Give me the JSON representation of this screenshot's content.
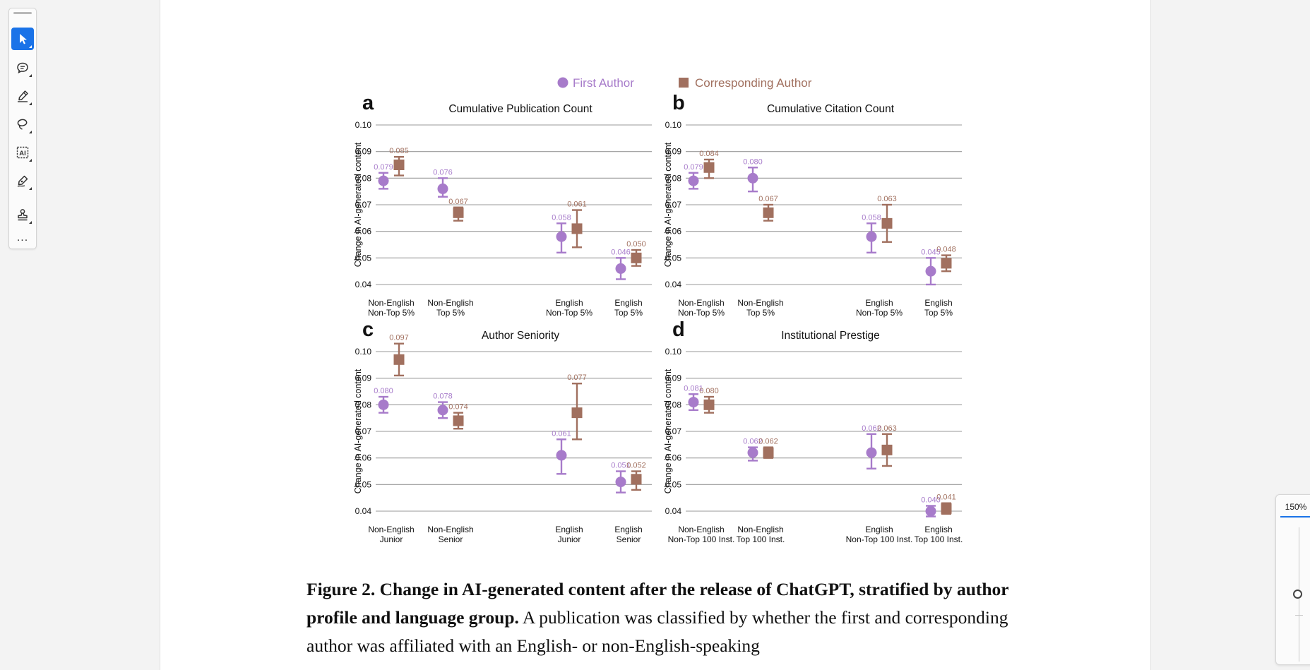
{
  "toolbar": {
    "tools": [
      "select-tool",
      "comment-tool",
      "highlight-tool",
      "lasso-tool",
      "ai-text-select-tool",
      "draw-tool",
      "stamp-tool"
    ],
    "more_label": "..."
  },
  "zoom": {
    "level": "150%",
    "slider_value": 0.5
  },
  "figure": {
    "legend": {
      "first": "First Author",
      "corresponding": "Corresponding Author"
    },
    "colors": {
      "first": "#a77bca",
      "corresponding": "#a1705f",
      "grid": "#9a9a9a"
    },
    "ylabel": "Change in AI-generated content",
    "ylim": [
      0.04,
      0.1
    ],
    "yticks": [
      "0.04",
      "0.05",
      "0.06",
      "0.07",
      "0.08",
      "0.09",
      "0.10"
    ]
  },
  "chart_data": [
    {
      "panel": "a",
      "title": "Cumulative Publication Count",
      "type": "scatter",
      "categories": [
        [
          "Non-English",
          "Non-Top 5%"
        ],
        [
          "Non-English",
          "Top 5%"
        ],
        [
          "English",
          "Non-Top 5%"
        ],
        [
          "English",
          "Top 5%"
        ]
      ],
      "series": [
        {
          "name": "First Author",
          "values": [
            0.079,
            0.076,
            0.058,
            0.046
          ],
          "lower": [
            0.076,
            0.073,
            0.052,
            0.042
          ],
          "upper": [
            0.082,
            0.08,
            0.063,
            0.05
          ],
          "labels": [
            "0.079",
            "0.076",
            "0.058",
            "0.046"
          ]
        },
        {
          "name": "Corresponding Author",
          "values": [
            0.085,
            0.067,
            0.061,
            0.05
          ],
          "lower": [
            0.081,
            0.064,
            0.054,
            0.047
          ],
          "upper": [
            0.088,
            0.069,
            0.068,
            0.053
          ],
          "labels": [
            "0.085",
            "0.067",
            "0.061",
            "0.050"
          ]
        }
      ]
    },
    {
      "panel": "b",
      "title": "Cumulative Citation Count",
      "type": "scatter",
      "categories": [
        [
          "Non-English",
          "Non-Top 5%"
        ],
        [
          "Non-English",
          "Top 5%"
        ],
        [
          "English",
          "Non-Top 5%"
        ],
        [
          "English",
          "Top 5%"
        ]
      ],
      "series": [
        {
          "name": "First Author",
          "values": [
            0.079,
            0.08,
            0.058,
            0.045
          ],
          "lower": [
            0.076,
            0.075,
            0.052,
            0.04
          ],
          "upper": [
            0.082,
            0.084,
            0.063,
            0.05
          ],
          "labels": [
            "0.079",
            "0.080",
            "0.058",
            "0.045"
          ]
        },
        {
          "name": "Corresponding Author",
          "values": [
            0.084,
            0.067,
            0.063,
            0.048
          ],
          "lower": [
            0.08,
            0.064,
            0.056,
            0.045
          ],
          "upper": [
            0.087,
            0.07,
            0.07,
            0.051
          ],
          "labels": [
            "0.084",
            "0.067",
            "0.063",
            "0.048"
          ]
        }
      ]
    },
    {
      "panel": "c",
      "title": "Author Seniority",
      "type": "scatter",
      "categories": [
        [
          "Non-English",
          "Junior"
        ],
        [
          "Non-English",
          "Senior"
        ],
        [
          "English",
          "Junior"
        ],
        [
          "English",
          "Senior"
        ]
      ],
      "series": [
        {
          "name": "First Author",
          "values": [
            0.08,
            0.078,
            0.061,
            0.051
          ],
          "lower": [
            0.077,
            0.075,
            0.054,
            0.047
          ],
          "upper": [
            0.083,
            0.081,
            0.067,
            0.055
          ],
          "labels": [
            "0.080",
            "0.078",
            "0.061",
            "0.051"
          ]
        },
        {
          "name": "Corresponding Author",
          "values": [
            0.097,
            0.074,
            0.077,
            0.052
          ],
          "lower": [
            0.091,
            0.071,
            0.067,
            0.048
          ],
          "upper": [
            0.103,
            0.077,
            0.088,
            0.055
          ],
          "labels": [
            "0.097",
            "0.074",
            "0.077",
            "0.052"
          ]
        }
      ]
    },
    {
      "panel": "d",
      "title": "Institutional Prestige",
      "type": "scatter",
      "categories": [
        [
          "Non-English",
          "Non-Top 100 Inst."
        ],
        [
          "Non-English",
          "Top 100 Inst."
        ],
        [
          "English",
          "Non-Top 100 Inst."
        ],
        [
          "English",
          "Top 100 Inst."
        ]
      ],
      "series": [
        {
          "name": "First Author",
          "values": [
            0.081,
            0.062,
            0.062,
            0.04
          ],
          "lower": [
            0.078,
            0.059,
            0.056,
            0.038
          ],
          "upper": [
            0.084,
            0.064,
            0.069,
            0.042
          ],
          "labels": [
            "0.081",
            "0.062",
            "0.062",
            "0.040"
          ]
        },
        {
          "name": "Corresponding Author",
          "values": [
            0.08,
            0.062,
            0.063,
            0.041
          ],
          "lower": [
            0.077,
            0.06,
            0.057,
            0.039
          ],
          "upper": [
            0.083,
            0.064,
            0.069,
            0.043
          ],
          "labels": [
            "0.080",
            "0.062",
            "0.063",
            "0.041"
          ]
        }
      ]
    }
  ],
  "caption": {
    "bold": "Figure 2. Change in AI-generated content after the release of ChatGPT, stratified by author profile and language group.",
    "text": " A publication was classified by whether the first and corresponding author was affiliated with an English- or non-English-speaking"
  }
}
